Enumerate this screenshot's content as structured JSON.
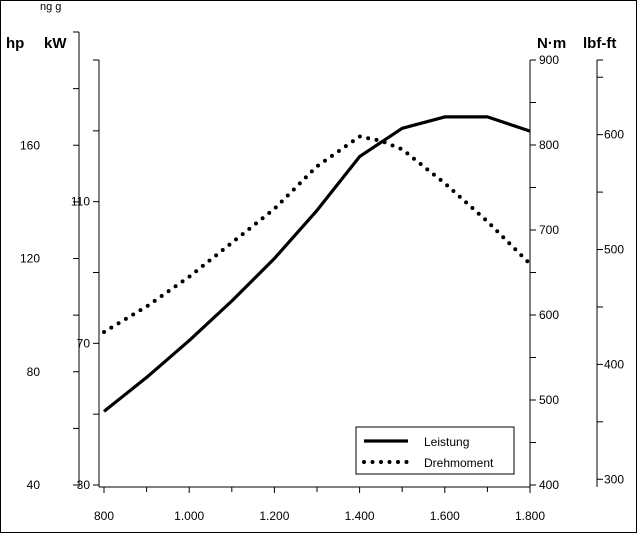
{
  "header": {
    "text": "ng                          g"
  },
  "chart_data": {
    "type": "line",
    "x": [
      800,
      950,
      1100,
      1250,
      1400,
      1450,
      1500,
      1600,
      1700,
      1800
    ],
    "x_tick_labels": [
      "800",
      "1.000",
      "1.200",
      "1.400",
      "1.600",
      "1.800"
    ],
    "x_ticks": [
      800,
      1000,
      1200,
      1400,
      1600,
      1800
    ],
    "xlim": [
      800,
      1800
    ],
    "axes": {
      "hp": {
        "title": "hp",
        "ticks": [
          40,
          80,
          120,
          160
        ],
        "tick_labels": [
          "40",
          "80",
          "120",
          "160"
        ],
        "lim": [
          40,
          200
        ]
      },
      "kW": {
        "title": "kW",
        "ticks": [
          30,
          70,
          110
        ],
        "tick_labels": [
          "30",
          "70",
          "110"
        ],
        "lim": [
          30,
          150
        ]
      },
      "Nm": {
        "title": "N·m",
        "ticks": [
          400,
          500,
          600,
          700,
          800,
          900
        ],
        "tick_labels": [
          "400",
          "500",
          "600",
          "700",
          "800",
          "900"
        ],
        "lim": [
          400,
          900
        ]
      },
      "lbfft": {
        "title": "lbf-ft",
        "ticks": [
          300,
          400,
          500,
          600
        ],
        "tick_labels": [
          "300",
          "400",
          "500",
          "600"
        ],
        "lim": [
          295,
          665
        ]
      }
    },
    "series": [
      {
        "name": "Leistung",
        "axis": "hp",
        "style": "solid",
        "x": [
          800,
          900,
          1000,
          1100,
          1200,
          1300,
          1400,
          1500,
          1600,
          1700,
          1800
        ],
        "values": [
          66,
          78,
          91,
          105,
          120,
          137,
          156,
          166,
          170,
          170,
          165
        ]
      },
      {
        "name": "Drehmoment",
        "axis": "Nm",
        "style": "dotted",
        "x": [
          800,
          900,
          1000,
          1100,
          1200,
          1300,
          1400,
          1450,
          1500,
          1600,
          1700,
          1800
        ],
        "values": [
          580,
          610,
          645,
          685,
          725,
          775,
          810,
          805,
          795,
          755,
          710,
          660
        ]
      }
    ],
    "legend": {
      "position": "bottom-right",
      "entries": [
        "Leistung",
        "Drehmoment"
      ]
    },
    "grid": false
  }
}
